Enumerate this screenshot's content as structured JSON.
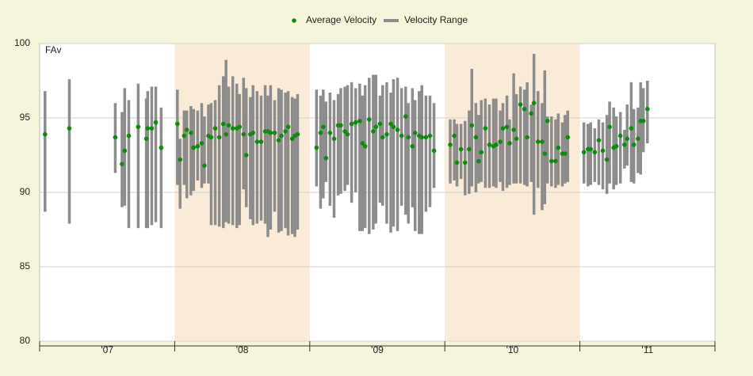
{
  "chart_data": {
    "type": "range-scatter",
    "annotation": "FAv",
    "legend": "top",
    "grid": true,
    "xlim": [
      2007,
      2012
    ],
    "xticks": [
      {
        "value": 2007.5,
        "label": "'07"
      },
      {
        "value": 2008.5,
        "label": "'08"
      },
      {
        "value": 2009.5,
        "label": "'09"
      },
      {
        "value": 2010.5,
        "label": "'10"
      },
      {
        "value": 2011.5,
        "label": "'11"
      }
    ],
    "season_edges": [
      2007,
      2008,
      2009,
      2010,
      2011,
      2012
    ],
    "shaded_bands": [
      [
        2008,
        2009
      ],
      [
        2010,
        2011
      ]
    ],
    "band_color": "#f9ebd8",
    "ylim": [
      80,
      100
    ],
    "yticks": [
      80,
      85,
      90,
      95,
      100
    ],
    "x": [
      2007.04,
      2007.22,
      2007.56,
      2007.61,
      2007.63,
      2007.66,
      2007.73,
      2007.79,
      2007.8,
      2007.83,
      2007.86,
      2007.9,
      2008.02,
      2008.04,
      2008.07,
      2008.09,
      2008.12,
      2008.14,
      2008.17,
      2008.2,
      2008.22,
      2008.25,
      2008.27,
      2008.3,
      2008.33,
      2008.36,
      2008.38,
      2008.4,
      2008.43,
      2008.46,
      2008.48,
      2008.51,
      2008.53,
      2008.56,
      2008.58,
      2008.61,
      2008.64,
      2008.67,
      2008.69,
      2008.71,
      2008.74,
      2008.77,
      2008.79,
      2008.82,
      2008.84,
      2008.87,
      2008.89,
      2008.91,
      2009.05,
      2009.08,
      2009.1,
      2009.12,
      2009.15,
      2009.18,
      2009.21,
      2009.23,
      2009.26,
      2009.28,
      2009.31,
      2009.34,
      2009.37,
      2009.39,
      2009.41,
      2009.44,
      2009.47,
      2009.49,
      2009.52,
      2009.54,
      2009.57,
      2009.6,
      2009.62,
      2009.65,
      2009.68,
      2009.71,
      2009.73,
      2009.76,
      2009.78,
      2009.81,
      2009.83,
      2009.86,
      2009.89,
      2009.92,
      2010.04,
      2010.07,
      2010.09,
      2010.12,
      2010.15,
      2010.18,
      2010.2,
      2010.23,
      2010.25,
      2010.27,
      2010.3,
      2010.33,
      2010.36,
      2010.38,
      2010.41,
      2010.43,
      2010.46,
      2010.48,
      2010.51,
      2010.53,
      2010.56,
      2010.59,
      2010.61,
      2010.64,
      2010.66,
      2010.69,
      2010.72,
      2010.74,
      2010.76,
      2010.79,
      2010.82,
      2010.84,
      2010.87,
      2010.89,
      2010.91,
      2011.03,
      2011.06,
      2011.08,
      2011.11,
      2011.14,
      2011.17,
      2011.2,
      2011.22,
      2011.25,
      2011.27,
      2011.3,
      2011.33,
      2011.35,
      2011.38,
      2011.4,
      2011.43,
      2011.45,
      2011.47,
      2011.5
    ],
    "series": [
      {
        "name": "Average Velocity",
        "color": "#108a10",
        "values": [
          93.9,
          94.3,
          93.7,
          91.9,
          92.8,
          93.8,
          94.4,
          93.6,
          94.3,
          94.3,
          94.7,
          93.0,
          94.6,
          92.2,
          93.8,
          94.2,
          94.0,
          93.0,
          93.1,
          93.3,
          91.8,
          93.8,
          93.7,
          94.3,
          93.7,
          94.6,
          93.9,
          94.5,
          94.3,
          94.3,
          94.4,
          93.9,
          92.5,
          93.9,
          94.0,
          93.4,
          93.4,
          94.1,
          94.1,
          94.0,
          94.0,
          93.5,
          93.8,
          94.1,
          94.4,
          93.6,
          93.8,
          93.9,
          93.0,
          94.0,
          94.4,
          92.3,
          94.0,
          93.6,
          94.5,
          94.5,
          94.1,
          93.9,
          94.6,
          94.7,
          94.8,
          93.3,
          93.1,
          94.9,
          94.1,
          94.4,
          94.6,
          93.7,
          93.9,
          94.6,
          94.4,
          94.2,
          93.8,
          95.1,
          93.7,
          93.1,
          94.0,
          93.8,
          93.7,
          93.7,
          93.8,
          92.8,
          93.2,
          93.8,
          92.0,
          92.9,
          92.0,
          92.9,
          94.5,
          93.7,
          92.1,
          92.7,
          94.3,
          93.2,
          93.1,
          93.2,
          93.4,
          94.3,
          94.4,
          93.3,
          94.2,
          93.6,
          95.9,
          95.6,
          93.7,
          95.3,
          96.0,
          93.4,
          93.4,
          92.6,
          94.8,
          92.1,
          92.1,
          93.0,
          92.6,
          92.6,
          93.7,
          92.7,
          92.9,
          92.9,
          92.7,
          93.5,
          92.8,
          92.2,
          94.4,
          93.0,
          93.1,
          93.8,
          93.2,
          93.6,
          94.3,
          93.2,
          93.6,
          94.8,
          94.8,
          95.6
        ]
      },
      {
        "name": "Velocity Range",
        "color": "#8c8c8c",
        "low": [
          88.7,
          87.9,
          91.3,
          89.0,
          89.1,
          87.6,
          87.6,
          87.6,
          87.6,
          87.8,
          88.0,
          87.6,
          90.5,
          88.9,
          90.5,
          89.6,
          89.8,
          90.1,
          90.8,
          90.3,
          90.6,
          90.6,
          87.8,
          87.8,
          87.7,
          87.6,
          88.0,
          87.9,
          87.8,
          87.6,
          87.8,
          90.2,
          89.0,
          88.2,
          87.8,
          87.9,
          88.1,
          87.9,
          87.0,
          87.5,
          88.7,
          87.3,
          87.4,
          87.6,
          87.1,
          87.2,
          87.0,
          87.5,
          90.4,
          88.9,
          89.6,
          90.7,
          89.1,
          88.3,
          89.8,
          89.9,
          90.1,
          90.5,
          89.3,
          90.0,
          87.4,
          87.4,
          87.6,
          87.2,
          87.5,
          87.9,
          89.3,
          89.1,
          87.9,
          87.3,
          87.7,
          87.4,
          89.1,
          88.5,
          87.9,
          89.0,
          87.4,
          87.2,
          87.2,
          88.7,
          89.0,
          90.3,
          90.6,
          90.8,
          90.4,
          90.9,
          89.8,
          89.9,
          90.4,
          90.0,
          90.6,
          90.7,
          90.3,
          90.3,
          90.4,
          90.3,
          90.7,
          90.1,
          90.3,
          90.5,
          90.6,
          90.6,
          90.6,
          90.5,
          90.4,
          90.7,
          88.5,
          90.3,
          88.8,
          89.2,
          90.6,
          90.4,
          90.3,
          90.5,
          90.4,
          90.6,
          90.7,
          90.6,
          90.4,
          90.5,
          90.7,
          90.5,
          90.2,
          89.9,
          90.6,
          90.2,
          90.5,
          90.6,
          91.6,
          91.8,
          90.7,
          90.6,
          91.3,
          91.2,
          92.7,
          93.3
        ],
        "high": [
          96.8,
          97.6,
          96.0,
          95.4,
          97.0,
          96.2,
          97.3,
          96.3,
          96.8,
          97.1,
          97.1,
          95.7,
          96.9,
          93.6,
          95.5,
          95.5,
          95.8,
          95.6,
          95.5,
          96.0,
          95.1,
          95.9,
          96.0,
          96.2,
          97.2,
          97.8,
          98.9,
          97.1,
          97.8,
          97.3,
          96.6,
          97.7,
          97.0,
          96.4,
          97.2,
          96.8,
          96.5,
          97.2,
          96.5,
          97.2,
          96.2,
          97.0,
          96.9,
          96.7,
          96.8,
          96.4,
          96.3,
          96.6,
          96.9,
          96.5,
          96.9,
          96.1,
          96.7,
          96.2,
          96.6,
          97.0,
          97.1,
          97.2,
          97.4,
          97.0,
          97.3,
          96.5,
          97.2,
          97.7,
          97.9,
          97.9,
          96.5,
          97.2,
          97.4,
          96.7,
          97.6,
          97.7,
          97.0,
          97.1,
          96.0,
          97.0,
          96.2,
          96.8,
          97.2,
          96.5,
          96.5,
          96.0,
          94.9,
          94.9,
          94.6,
          94.6,
          94.8,
          95.5,
          98.3,
          96.0,
          95.2,
          96.2,
          96.3,
          95.9,
          96.3,
          96.3,
          95.5,
          96.0,
          96.5,
          94.9,
          98.0,
          96.6,
          97.1,
          96.9,
          97.4,
          95.9,
          99.3,
          96.8,
          96.0,
          98.2,
          95.1,
          95.1,
          94.9,
          95.3,
          94.7,
          95.2,
          95.5,
          94.7,
          94.6,
          94.7,
          94.3,
          94.9,
          94.7,
          95.2,
          96.1,
          95.7,
          95.1,
          95.4,
          94.2,
          95.9,
          97.4,
          95.6,
          95.7,
          97.4,
          97.0,
          97.5
        ]
      }
    ]
  }
}
